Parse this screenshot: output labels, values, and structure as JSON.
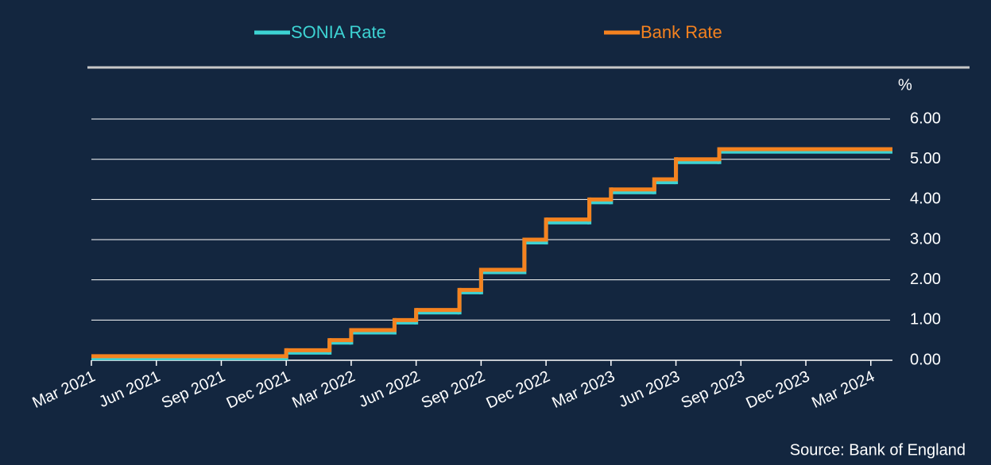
{
  "chart_data": {
    "type": "step",
    "source": "Source: Bank of England",
    "y_label": "%",
    "grid": true,
    "legend_position": "top",
    "xlim": [
      "2021-03",
      "2024-04"
    ],
    "xticks": [
      {
        "value": "2021-03",
        "label": "Mar 2021"
      },
      {
        "value": "2021-06",
        "label": "Jun 2021"
      },
      {
        "value": "2021-09",
        "label": "Sep 2021"
      },
      {
        "value": "2021-12",
        "label": "Dec 2021"
      },
      {
        "value": "2022-03",
        "label": "Mar 2022"
      },
      {
        "value": "2022-06",
        "label": "Jun 2022"
      },
      {
        "value": "2022-09",
        "label": "Sep 2022"
      },
      {
        "value": "2022-12",
        "label": "Dec 2022"
      },
      {
        "value": "2023-03",
        "label": "Mar 2023"
      },
      {
        "value": "2023-06",
        "label": "Jun 2023"
      },
      {
        "value": "2023-09",
        "label": "Sep 2023"
      },
      {
        "value": "2023-12",
        "label": "Dec 2023"
      },
      {
        "value": "2024-03",
        "label": "Mar 2024"
      }
    ],
    "ylim": [
      0,
      6.5
    ],
    "yticks": [
      {
        "value": 0,
        "label": "0.00"
      },
      {
        "value": 1,
        "label": "1.00"
      },
      {
        "value": 2,
        "label": "2.00"
      },
      {
        "value": 3,
        "label": "3.00"
      },
      {
        "value": 4,
        "label": "4.00"
      },
      {
        "value": 5,
        "label": "5.00"
      },
      {
        "value": 6,
        "label": "6.00"
      }
    ],
    "x": [
      "2021-03",
      "2021-12",
      "2022-02",
      "2022-03",
      "2022-05",
      "2022-06",
      "2022-08",
      "2022-09",
      "2022-11",
      "2022-12",
      "2023-02",
      "2023-03",
      "2023-05",
      "2023-06",
      "2023-08"
    ],
    "series": [
      {
        "name": "SONIA Rate",
        "color": "#3dd3d3",
        "values": [
          0.05,
          0.19,
          0.44,
          0.69,
          0.94,
          1.19,
          1.69,
          2.19,
          2.93,
          3.43,
          3.93,
          4.18,
          4.43,
          4.93,
          5.19
        ]
      },
      {
        "name": "Bank Rate",
        "color": "#f5821f",
        "values": [
          0.1,
          0.25,
          0.5,
          0.75,
          1.0,
          1.25,
          1.75,
          2.25,
          3.0,
          3.5,
          4.0,
          4.25,
          4.5,
          5.0,
          5.25
        ]
      }
    ]
  }
}
